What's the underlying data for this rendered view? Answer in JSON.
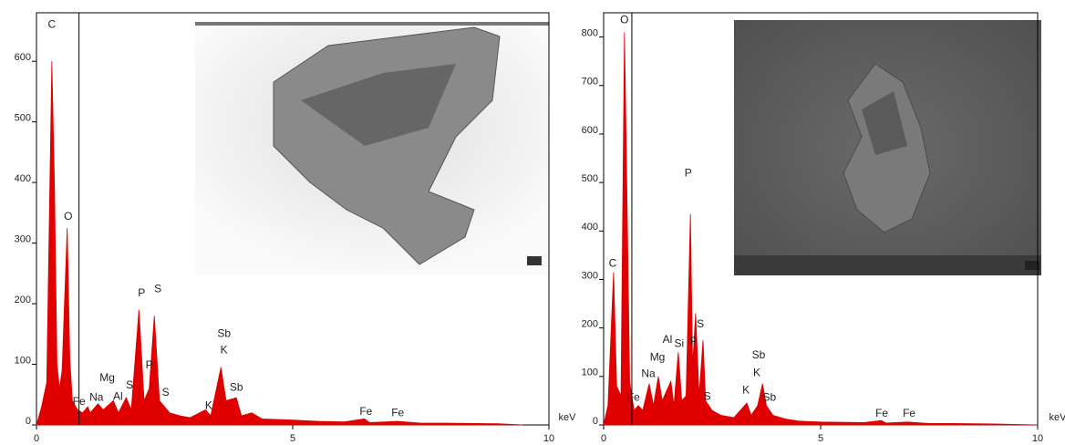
{
  "chart_data": [
    {
      "type": "area",
      "x_label": "keV",
      "color": "#e00000",
      "xlim": [
        0,
        10
      ],
      "xticks": [
        0,
        5,
        10
      ],
      "ylim": [
        0,
        680
      ],
      "yticks": [
        0,
        100,
        200,
        300,
        400,
        500,
        600
      ],
      "cursor_x": 0.83,
      "x": [
        0,
        0.1,
        0.2,
        0.3,
        0.35,
        0.4,
        0.45,
        0.5,
        0.6,
        0.65,
        0.7,
        0.8,
        0.9,
        1.0,
        1.05,
        1.2,
        1.3,
        1.5,
        1.6,
        1.75,
        1.85,
        2.0,
        2.1,
        2.2,
        2.3,
        2.4,
        2.6,
        2.8,
        3.0,
        3.3,
        3.4,
        3.6,
        3.7,
        3.9,
        4.0,
        4.2,
        4.4,
        5,
        5.5,
        6,
        6.4,
        6.5,
        7.05,
        7.5,
        8,
        9,
        9.5
      ],
      "values": [
        0,
        30,
        70,
        600,
        400,
        100,
        60,
        90,
        325,
        110,
        40,
        25,
        20,
        30,
        20,
        35,
        25,
        40,
        20,
        45,
        25,
        190,
        40,
        60,
        180,
        40,
        20,
        15,
        12,
        25,
        15,
        95,
        40,
        45,
        15,
        20,
        10,
        8,
        6,
        5,
        10,
        4,
        6,
        3,
        3,
        2,
        0
      ],
      "annotations": [
        {
          "text": "C",
          "x": 0.3,
          "y": 660
        },
        {
          "text": "O",
          "x": 0.62,
          "y": 343
        },
        {
          "text": "Fe",
          "x": 0.83,
          "y": 38
        },
        {
          "text": "Na",
          "x": 1.17,
          "y": 45
        },
        {
          "text": "Mg",
          "x": 1.38,
          "y": 77
        },
        {
          "text": "Al",
          "x": 1.59,
          "y": 46
        },
        {
          "text": "Si",
          "x": 1.84,
          "y": 65
        },
        {
          "text": "P",
          "x": 2.05,
          "y": 217
        },
        {
          "text": "S",
          "x": 2.37,
          "y": 224
        },
        {
          "text": "P",
          "x": 2.2,
          "y": 98
        },
        {
          "text": "S",
          "x": 2.52,
          "y": 53
        },
        {
          "text": "K",
          "x": 3.36,
          "y": 31
        },
        {
          "text": "Sb",
          "x": 3.66,
          "y": 150
        },
        {
          "text": "K",
          "x": 3.66,
          "y": 123
        },
        {
          "text": "Sb",
          "x": 3.9,
          "y": 61
        },
        {
          "text": "Fe",
          "x": 6.43,
          "y": 21
        },
        {
          "text": "Fe",
          "x": 7.05,
          "y": 19
        }
      ]
    },
    {
      "type": "area",
      "x_label": "keV",
      "color": "#e00000",
      "xlim": [
        0,
        10
      ],
      "xticks": [
        0,
        5,
        10
      ],
      "ylim": [
        0,
        850
      ],
      "yticks": [
        0,
        100,
        200,
        300,
        400,
        500,
        600,
        700,
        800
      ],
      "cursor_x": 0.65,
      "x": [
        0,
        0.1,
        0.23,
        0.3,
        0.4,
        0.48,
        0.52,
        0.6,
        0.7,
        0.8,
        0.9,
        1.05,
        1.15,
        1.26,
        1.35,
        1.45,
        1.55,
        1.62,
        1.72,
        1.8,
        1.9,
        2.0,
        2.05,
        2.12,
        2.2,
        2.29,
        2.35,
        2.5,
        2.7,
        3.0,
        3.3,
        3.4,
        3.55,
        3.66,
        3.75,
        3.9,
        4.2,
        4.5,
        5,
        6,
        6.4,
        6.5,
        7,
        7.5,
        8,
        9,
        10
      ],
      "values": [
        0,
        40,
        315,
        80,
        60,
        810,
        580,
        90,
        30,
        40,
        30,
        85,
        40,
        100,
        50,
        70,
        90,
        40,
        150,
        50,
        60,
        435,
        120,
        230,
        60,
        175,
        50,
        30,
        20,
        15,
        45,
        20,
        40,
        85,
        40,
        20,
        12,
        8,
        6,
        5,
        9,
        4,
        6,
        3,
        3,
        2,
        0
      ],
      "annotations": [
        {
          "text": "O",
          "x": 0.48,
          "y": 834
        },
        {
          "text": "C",
          "x": 0.21,
          "y": 332
        },
        {
          "text": "Fe",
          "x": 0.69,
          "y": 56
        },
        {
          "text": "Na",
          "x": 1.03,
          "y": 105
        },
        {
          "text": "Mg",
          "x": 1.24,
          "y": 139
        },
        {
          "text": "Al",
          "x": 1.47,
          "y": 175
        },
        {
          "text": "Si",
          "x": 1.74,
          "y": 167
        },
        {
          "text": "P",
          "x": 1.95,
          "y": 518
        },
        {
          "text": "S",
          "x": 2.23,
          "y": 207
        },
        {
          "text": "P",
          "x": 2.08,
          "y": 171
        },
        {
          "text": "S",
          "x": 2.39,
          "y": 58
        },
        {
          "text": "K",
          "x": 3.28,
          "y": 71
        },
        {
          "text": "Sb",
          "x": 3.57,
          "y": 143
        },
        {
          "text": "K",
          "x": 3.53,
          "y": 107
        },
        {
          "text": "Sb",
          "x": 3.82,
          "y": 56
        },
        {
          "text": "Fe",
          "x": 6.41,
          "y": 23
        },
        {
          "text": "Fe",
          "x": 7.04,
          "y": 23
        }
      ]
    }
  ]
}
